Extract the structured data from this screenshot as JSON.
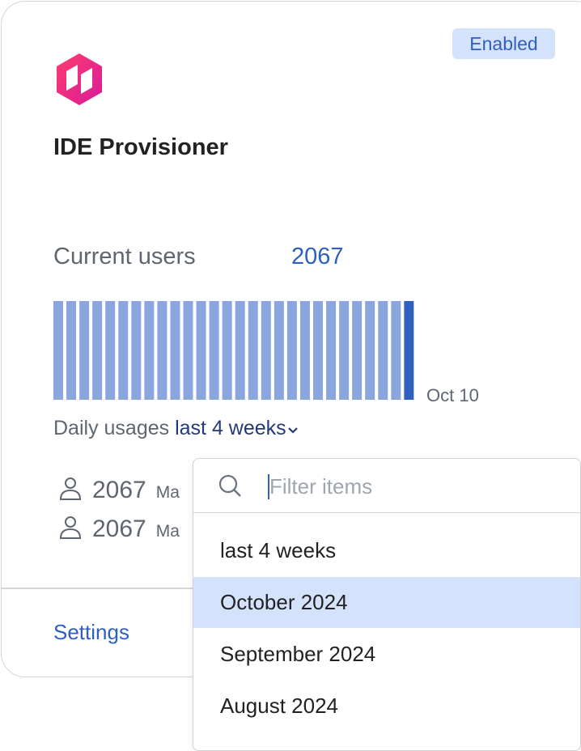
{
  "card": {
    "status": "Enabled",
    "title": "IDE Provisioner",
    "current_users_label": "Current users",
    "current_users": 2067,
    "usage": {
      "values": [
        2067,
        2067,
        2067,
        2067,
        2067,
        2067,
        2067,
        2067,
        2067,
        2067,
        2067,
        2067,
        2067,
        2067,
        2067,
        2067,
        2067,
        2067,
        2067,
        2067,
        2067,
        2067,
        2067,
        2067,
        2067,
        2067,
        2067,
        2067
      ],
      "color": "#8aa6dc",
      "highlight_color": "#2f5fbf",
      "end_label": "Oct 10"
    },
    "daily_label": "Daily usages",
    "period": "last 4 weeks",
    "user_rows": [
      {
        "count": 2067,
        "text": "Ma"
      },
      {
        "count": 2067,
        "text": "Ma"
      }
    ],
    "settings": "Settings"
  },
  "dropdown": {
    "placeholder": "Filter items",
    "items": [
      "last 4 weeks",
      "October 2024",
      "September 2024",
      "August 2024"
    ],
    "selected": 1
  }
}
